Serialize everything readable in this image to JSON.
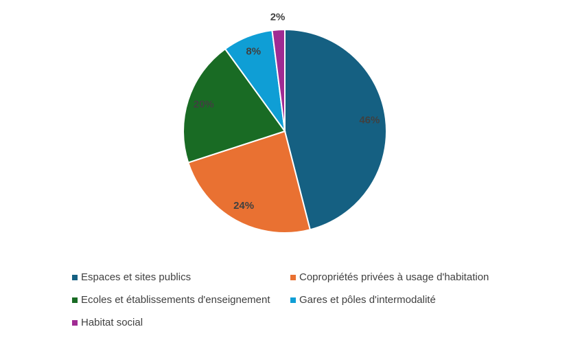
{
  "chart_data": {
    "type": "pie",
    "categories": [
      "Espaces et sites publics",
      "Copropriétés privées à usage d'habitation",
      "Ecoles et établissements d'enseignement",
      "Gares et pôles d'intermodalité",
      "Habitat social"
    ],
    "values": [
      46,
      24,
      20,
      8,
      2
    ],
    "value_labels": [
      "46%",
      "24%",
      "20%",
      "8%",
      "2%"
    ],
    "colors": [
      "#156082",
      "#e97132",
      "#196b24",
      "#0f9ed5",
      "#a02b93"
    ],
    "legend": "bottom"
  }
}
